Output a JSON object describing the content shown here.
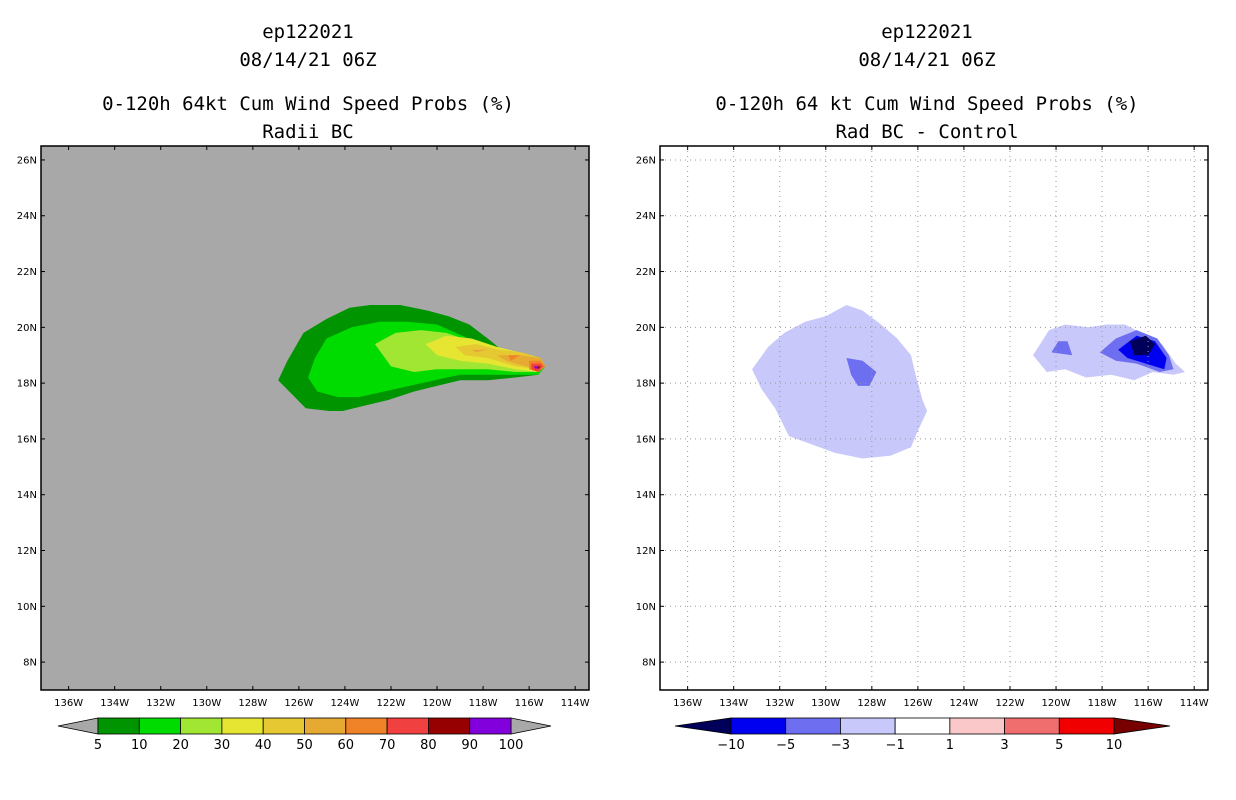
{
  "chart_data": [
    {
      "type": "heatmap",
      "storm_id": "ep122021",
      "datetime": "08/14/21 06Z",
      "title": "0-120h 64kt Cum Wind Speed Probs (%)",
      "subtitle": "Radii BC",
      "background_color": "#a8a8a8",
      "grid": false,
      "x_range_lon": [
        -137.2,
        -113.4
      ],
      "y_range_lat": [
        7,
        26.5
      ],
      "x_ticks": [
        "136W",
        "134W",
        "132W",
        "130W",
        "128W",
        "126W",
        "124W",
        "122W",
        "120W",
        "118W",
        "116W",
        "114W"
      ],
      "y_ticks": [
        "8N",
        "10N",
        "12N",
        "14N",
        "16N",
        "18N",
        "20N",
        "22N",
        "24N",
        "26N"
      ],
      "colorbar": {
        "labels": [
          "5",
          "10",
          "20",
          "30",
          "40",
          "50",
          "60",
          "70",
          "80",
          "90",
          "100"
        ],
        "colors": [
          "#009400",
          "#00dc00",
          "#a0e632",
          "#e6e632",
          "#e6c832",
          "#e6aa32",
          "#f08228",
          "#f04040",
          "#960000",
          "#8200dc"
        ],
        "under_color": "#a8a8a8",
        "over_color": "#a8a8a8"
      },
      "contours": [
        {
          "level": 5,
          "color": "#009400",
          "polygon_lonlat": [
            [
              -126.9,
              18.1
            ],
            [
              -126.5,
              18.8
            ],
            [
              -125.8,
              19.8
            ],
            [
              -124.8,
              20.3
            ],
            [
              -123.8,
              20.7
            ],
            [
              -122.9,
              20.8
            ],
            [
              -121.6,
              20.8
            ],
            [
              -120.4,
              20.6
            ],
            [
              -119.5,
              20.4
            ],
            [
              -118.6,
              20.1
            ],
            [
              -117.8,
              19.6
            ],
            [
              -117.2,
              19.2
            ],
            [
              -116.2,
              18.9
            ],
            [
              -115.5,
              18.9
            ],
            [
              -115.3,
              18.6
            ],
            [
              -115.6,
              18.3
            ],
            [
              -116.6,
              18.2
            ],
            [
              -117.8,
              18.1
            ],
            [
              -119.0,
              18.1
            ],
            [
              -120.0,
              17.9
            ],
            [
              -121.0,
              17.7
            ],
            [
              -122.1,
              17.4
            ],
            [
              -123.1,
              17.2
            ],
            [
              -124.1,
              17.0
            ],
            [
              -124.7,
              17.0
            ],
            [
              -125.7,
              17.1
            ],
            [
              -126.3,
              17.6
            ]
          ]
        },
        {
          "level": 10,
          "color": "#00dc00",
          "polygon_lonlat": [
            [
              -125.6,
              18.2
            ],
            [
              -125.3,
              18.9
            ],
            [
              -124.8,
              19.6
            ],
            [
              -123.7,
              20.0
            ],
            [
              -122.5,
              20.2
            ],
            [
              -121.3,
              20.2
            ],
            [
              -120.0,
              20.1
            ],
            [
              -118.9,
              19.7
            ],
            [
              -117.9,
              19.3
            ],
            [
              -117.0,
              19.0
            ],
            [
              -116.3,
              18.9
            ],
            [
              -115.5,
              18.9
            ],
            [
              -115.3,
              18.6
            ],
            [
              -115.6,
              18.3
            ],
            [
              -116.6,
              18.3
            ],
            [
              -117.8,
              18.3
            ],
            [
              -119.0,
              18.3
            ],
            [
              -120.1,
              18.1
            ],
            [
              -121.2,
              17.9
            ],
            [
              -122.3,
              17.7
            ],
            [
              -123.4,
              17.5
            ],
            [
              -124.3,
              17.5
            ],
            [
              -125.2,
              17.7
            ]
          ]
        },
        {
          "level": 20,
          "color": "#a0e632",
          "polygon_lonlat": [
            [
              -122.7,
              19.4
            ],
            [
              -121.8,
              19.8
            ],
            [
              -120.7,
              19.9
            ],
            [
              -119.6,
              19.8
            ],
            [
              -118.5,
              19.5
            ],
            [
              -117.4,
              19.2
            ],
            [
              -116.4,
              19.0
            ],
            [
              -115.5,
              18.9
            ],
            [
              -115.3,
              18.6
            ],
            [
              -115.6,
              18.4
            ],
            [
              -116.6,
              18.4
            ],
            [
              -117.8,
              18.5
            ],
            [
              -119.0,
              18.5
            ],
            [
              -120.0,
              18.5
            ],
            [
              -121.0,
              18.4
            ],
            [
              -122.0,
              18.6
            ]
          ]
        },
        {
          "level": 30,
          "color": "#e6e632",
          "polygon_lonlat": [
            [
              -120.5,
              19.4
            ],
            [
              -119.6,
              19.7
            ],
            [
              -118.5,
              19.6
            ],
            [
              -117.4,
              19.3
            ],
            [
              -116.4,
              19.1
            ],
            [
              -115.5,
              18.9
            ],
            [
              -115.3,
              18.6
            ],
            [
              -115.6,
              18.4
            ],
            [
              -116.6,
              18.5
            ],
            [
              -117.8,
              18.7
            ],
            [
              -119.0,
              18.8
            ],
            [
              -120.0,
              19.0
            ]
          ]
        },
        {
          "level": 40,
          "color": "#e6c832",
          "polygon_lonlat": [
            [
              -119.2,
              19.3
            ],
            [
              -118.3,
              19.4
            ],
            [
              -117.3,
              19.2
            ],
            [
              -116.3,
              19.1
            ],
            [
              -115.5,
              18.9
            ],
            [
              -115.3,
              18.6
            ],
            [
              -115.6,
              18.5
            ],
            [
              -116.6,
              18.6
            ],
            [
              -117.8,
              18.9
            ],
            [
              -118.8,
              19.0
            ]
          ]
        },
        {
          "level": 50,
          "color": "#e6aa32",
          "polygon_lonlat": [
            [
              -118.5,
              19.2
            ],
            [
              -117.8,
              19.2
            ],
            [
              -118.3,
              19.1
            ]
          ]
        },
        {
          "level": 50,
          "color": "#e6aa32",
          "polygon_lonlat": [
            [
              -117.4,
              19.0
            ],
            [
              -116.4,
              19.0
            ],
            [
              -115.5,
              18.9
            ],
            [
              -115.3,
              18.6
            ],
            [
              -115.6,
              18.5
            ],
            [
              -116.6,
              18.7
            ],
            [
              -117.0,
              18.8
            ]
          ]
        },
        {
          "level": 60,
          "color": "#f08228",
          "polygon_lonlat": [
            [
              -116.9,
              19.0
            ],
            [
              -116.4,
              19.0
            ],
            [
              -116.8,
              18.8
            ]
          ]
        },
        {
          "level": 60,
          "color": "#f08228",
          "polygon_lonlat": [
            [
              -116.0,
              18.8
            ],
            [
              -115.5,
              18.8
            ],
            [
              -115.3,
              18.6
            ],
            [
              -115.6,
              18.4
            ],
            [
              -116.0,
              18.5
            ]
          ]
        },
        {
          "level": 70,
          "color": "#f04040",
          "polygon_lonlat": [
            [
              -115.9,
              18.7
            ],
            [
              -115.5,
              18.7
            ],
            [
              -115.4,
              18.6
            ],
            [
              -115.6,
              18.4
            ],
            [
              -115.9,
              18.5
            ]
          ]
        },
        {
          "level": 80,
          "color": "#960000",
          "polygon_lonlat": [
            [
              -115.7,
              18.6
            ],
            [
              -115.5,
              18.6
            ],
            [
              -115.6,
              18.5
            ]
          ]
        },
        {
          "level": 90,
          "color": "#8200dc",
          "polygon_lonlat": [
            [
              -115.8,
              18.6
            ],
            [
              -115.6,
              18.6
            ],
            [
              -115.7,
              18.5
            ]
          ]
        }
      ]
    },
    {
      "type": "heatmap",
      "storm_id": "ep122021",
      "datetime": "08/14/21 06Z",
      "title": "0-120h 64 kt Cum Wind Speed Probs (%)",
      "subtitle": "Rad BC - Control",
      "background_color": "#ffffff",
      "grid": true,
      "x_range_lon": [
        -137.2,
        -113.4
      ],
      "y_range_lat": [
        7,
        26.5
      ],
      "x_ticks": [
        "136W",
        "134W",
        "132W",
        "130W",
        "128W",
        "126W",
        "124W",
        "122W",
        "120W",
        "118W",
        "116W",
        "114W"
      ],
      "y_ticks": [
        "8N",
        "10N",
        "12N",
        "14N",
        "16N",
        "18N",
        "20N",
        "22N",
        "24N",
        "26N"
      ],
      "colorbar": {
        "labels": [
          "-10",
          "-5",
          "-3",
          "-1",
          "1",
          "3",
          "5",
          "10"
        ],
        "colors": [
          "#0000f0",
          "#6e6ef0",
          "#c8c8fa",
          "#ffffff",
          "#fac8c8",
          "#f06e6e",
          "#f00000"
        ],
        "under_color": "#00005a",
        "over_color": "#780000"
      },
      "contours": [
        {
          "level": -1,
          "color": "#c8c8fa",
          "polygon_lonlat": [
            [
              -133.2,
              18.5
            ],
            [
              -132.5,
              19.3
            ],
            [
              -131.8,
              19.8
            ],
            [
              -130.9,
              20.2
            ],
            [
              -130.0,
              20.4
            ],
            [
              -129.1,
              20.8
            ],
            [
              -128.4,
              20.6
            ],
            [
              -127.6,
              20.1
            ],
            [
              -126.9,
              19.6
            ],
            [
              -126.3,
              19.0
            ],
            [
              -126.1,
              18.3
            ],
            [
              -125.8,
              17.4
            ],
            [
              -125.6,
              17.0
            ],
            [
              -126.0,
              16.3
            ],
            [
              -126.3,
              15.7
            ],
            [
              -127.2,
              15.4
            ],
            [
              -128.4,
              15.3
            ],
            [
              -129.6,
              15.5
            ],
            [
              -130.6,
              15.8
            ],
            [
              -131.6,
              16.1
            ],
            [
              -132.2,
              17.1
            ],
            [
              -132.8,
              17.8
            ]
          ]
        },
        {
          "level": -3,
          "color": "#6e6ef0",
          "polygon_lonlat": [
            [
              -129.1,
              18.9
            ],
            [
              -128.4,
              18.8
            ],
            [
              -127.8,
              18.4
            ],
            [
              -128.1,
              17.9
            ],
            [
              -128.6,
              17.9
            ],
            [
              -128.9,
              18.3
            ]
          ]
        },
        {
          "level": -1,
          "color": "#c8c8fa",
          "polygon_lonlat": [
            [
              -121.0,
              19.0
            ],
            [
              -120.3,
              19.9
            ],
            [
              -119.6,
              20.1
            ],
            [
              -118.6,
              20.0
            ],
            [
              -117.8,
              20.1
            ],
            [
              -117.0,
              20.1
            ],
            [
              -116.3,
              19.8
            ],
            [
              -115.4,
              19.4
            ],
            [
              -114.8,
              18.7
            ],
            [
              -114.4,
              18.4
            ],
            [
              -114.9,
              18.3
            ],
            [
              -115.8,
              18.4
            ],
            [
              -116.6,
              18.1
            ],
            [
              -117.6,
              18.3
            ],
            [
              -118.7,
              18.2
            ],
            [
              -119.6,
              18.5
            ],
            [
              -120.4,
              18.4
            ]
          ]
        },
        {
          "level": -3,
          "color": "#6e6ef0",
          "polygon_lonlat": [
            [
              -120.2,
              19.1
            ],
            [
              -119.9,
              19.5
            ],
            [
              -119.5,
              19.5
            ],
            [
              -119.3,
              19.0
            ]
          ]
        },
        {
          "level": -3,
          "color": "#6e6ef0",
          "polygon_lonlat": [
            [
              -118.1,
              19.1
            ],
            [
              -117.4,
              19.6
            ],
            [
              -116.5,
              19.9
            ],
            [
              -115.6,
              19.6
            ],
            [
              -115.1,
              19.0
            ],
            [
              -114.9,
              18.5
            ],
            [
              -115.5,
              18.4
            ],
            [
              -116.5,
              18.7
            ],
            [
              -117.4,
              18.8
            ]
          ]
        },
        {
          "level": -5,
          "color": "#0000f0",
          "polygon_lonlat": [
            [
              -117.3,
              19.2
            ],
            [
              -116.5,
              19.7
            ],
            [
              -115.7,
              19.5
            ],
            [
              -115.2,
              18.9
            ],
            [
              -115.3,
              18.5
            ],
            [
              -116.1,
              18.7
            ],
            [
              -116.9,
              18.9
            ]
          ]
        },
        {
          "level": -10,
          "color": "#00005a",
          "polygon_lonlat": [
            [
              -116.8,
              19.5
            ],
            [
              -116.1,
              19.7
            ],
            [
              -115.7,
              19.4
            ],
            [
              -116.0,
              19.0
            ],
            [
              -116.6,
              19.0
            ]
          ]
        }
      ]
    }
  ]
}
